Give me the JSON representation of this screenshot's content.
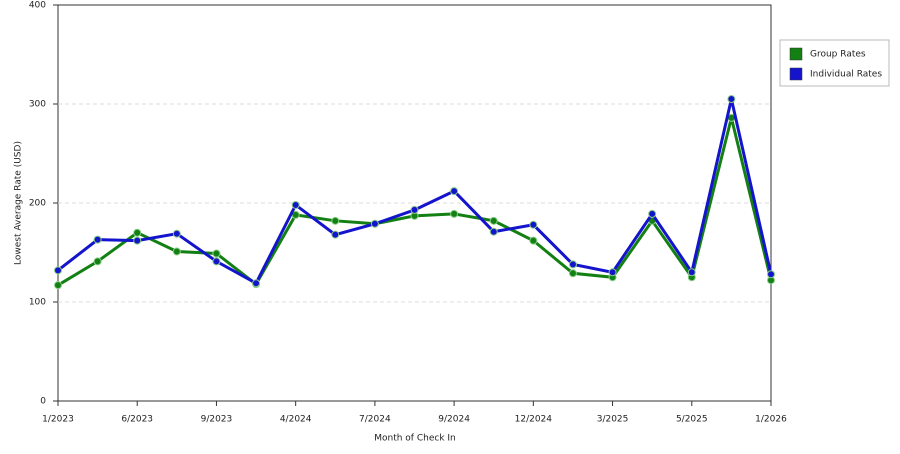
{
  "chart_data": {
    "type": "line",
    "x_label": "Month of Check In",
    "y_label": "Lowest Average Rate (USD)",
    "categories": [
      "1/2023",
      null,
      "6/2023",
      null,
      "9/2023",
      null,
      "4/2024",
      null,
      "7/2024",
      null,
      "9/2024",
      null,
      "12/2024",
      null,
      "3/2025",
      null,
      "5/2025",
      null,
      "1/2026"
    ],
    "series": [
      {
        "name": "Group Rates",
        "color": "#138013",
        "values": [
          117,
          141,
          170,
          151,
          149,
          118,
          188,
          182,
          179,
          187,
          189,
          182,
          162,
          129,
          125,
          182,
          125,
          286,
          122
        ]
      },
      {
        "name": "Individual Rates",
        "color": "#1414cc",
        "values": [
          132,
          163,
          162,
          169,
          141,
          119,
          198,
          168,
          179,
          193,
          212,
          171,
          178,
          138,
          130,
          189,
          130,
          305,
          128
        ]
      }
    ],
    "ylim": [
      0,
      400
    ],
    "yticks": [
      0,
      100,
      200,
      300,
      400
    ],
    "grid": true
  }
}
